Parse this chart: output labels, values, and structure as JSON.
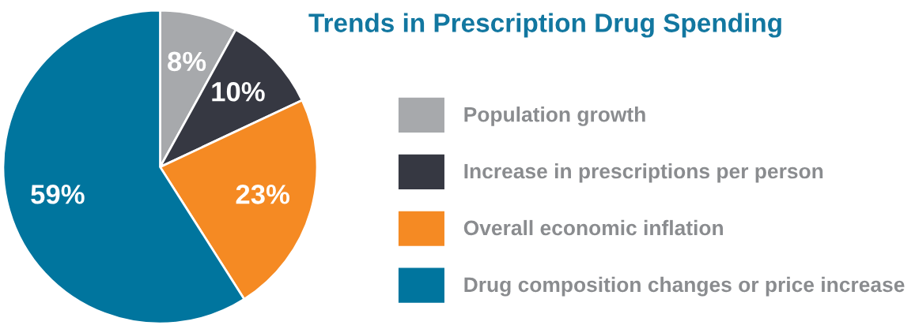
{
  "chart_data": {
    "type": "pie",
    "title": "Trends in Prescription Drug Spending",
    "categories": [
      "Population growth",
      "Increase in prescriptions per person",
      "Overall economic inflation",
      "Drug composition changes or price increase"
    ],
    "values": [
      8,
      10,
      23,
      59
    ],
    "colors": [
      "#a7a9ac",
      "#363842",
      "#f58a23",
      "#00759e"
    ],
    "value_labels": [
      "8%",
      "10%",
      "23%",
      "59%"
    ],
    "legend": "right"
  }
}
